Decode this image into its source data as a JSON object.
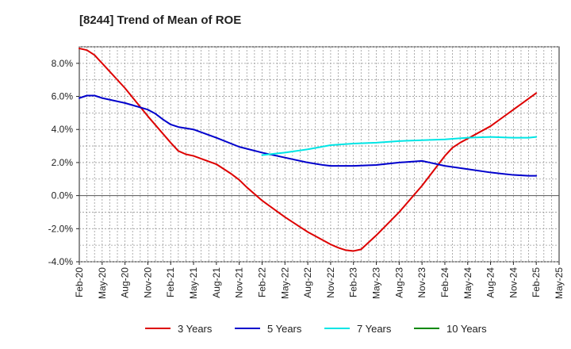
{
  "chart_data": {
    "type": "line",
    "title": "[8244]  Trend of Mean of ROE",
    "xlabel": "",
    "ylabel": "",
    "ylim": [
      -4.0,
      9.0
    ],
    "y_ticks": [
      8.0,
      6.0,
      4.0,
      2.0,
      0.0,
      -2.0,
      -4.0
    ],
    "y_tick_labels": [
      "8.0%",
      "6.0%",
      "4.0%",
      "2.0%",
      "0.0%",
      "-2.0%",
      "-4.0%"
    ],
    "x_range": [
      0,
      63
    ],
    "x_ticks": [
      0,
      3,
      6,
      9,
      12,
      15,
      18,
      21,
      24,
      27,
      30,
      33,
      36,
      39,
      42,
      45,
      48,
      51,
      54,
      57,
      60,
      63
    ],
    "x_tick_labels": [
      "Feb-20",
      "May-20",
      "Aug-20",
      "Nov-20",
      "Feb-21",
      "May-21",
      "Aug-21",
      "Nov-21",
      "Feb-22",
      "May-22",
      "Aug-22",
      "Nov-22",
      "Feb-23",
      "May-23",
      "Aug-23",
      "Nov-23",
      "Feb-24",
      "May-24",
      "Aug-24",
      "Nov-24",
      "Feb-25",
      "May-25"
    ],
    "grid": true,
    "legend_position": "bottom",
    "series": [
      {
        "name": "3 Years",
        "color": "#dd0000",
        "x": [
          0,
          1,
          2,
          3,
          6,
          9,
          12,
          13,
          14,
          15,
          18,
          20,
          21,
          22,
          24,
          27,
          30,
          32,
          33,
          34,
          35,
          36,
          37,
          39,
          42,
          45,
          48,
          49,
          50,
          51,
          54,
          57,
          60
        ],
        "y": [
          8.9,
          8.8,
          8.5,
          8.0,
          6.5,
          4.8,
          3.2,
          2.7,
          2.5,
          2.4,
          1.9,
          1.3,
          0.95,
          0.5,
          -0.3,
          -1.3,
          -2.2,
          -2.7,
          -2.95,
          -3.15,
          -3.3,
          -3.35,
          -3.25,
          -2.4,
          -1.0,
          0.6,
          2.4,
          2.9,
          3.2,
          3.45,
          4.2,
          5.2,
          6.2
        ]
      },
      {
        "name": "5 Years",
        "color": "#0000cc",
        "x": [
          0,
          1,
          2,
          3,
          6,
          9,
          10,
          11,
          12,
          13,
          15,
          18,
          21,
          24,
          27,
          30,
          32,
          33,
          34,
          36,
          39,
          42,
          45,
          46,
          48,
          51,
          54,
          57,
          59,
          60
        ],
        "y": [
          5.9,
          6.05,
          6.05,
          5.9,
          5.6,
          5.2,
          4.95,
          4.6,
          4.3,
          4.15,
          4.0,
          3.5,
          2.95,
          2.6,
          2.3,
          2.0,
          1.85,
          1.8,
          1.8,
          1.8,
          1.85,
          2.0,
          2.1,
          2.0,
          1.8,
          1.6,
          1.4,
          1.25,
          1.2,
          1.2
        ]
      },
      {
        "name": "7 Years",
        "color": "#00e5e5",
        "x": [
          24,
          27,
          30,
          33,
          36,
          39,
          42,
          45,
          48,
          51,
          54,
          57,
          59,
          60
        ],
        "y": [
          2.45,
          2.6,
          2.8,
          3.05,
          3.15,
          3.2,
          3.3,
          3.35,
          3.4,
          3.5,
          3.55,
          3.5,
          3.5,
          3.55
        ]
      },
      {
        "name": "10 Years",
        "color": "#008800",
        "x": [],
        "y": []
      }
    ]
  }
}
